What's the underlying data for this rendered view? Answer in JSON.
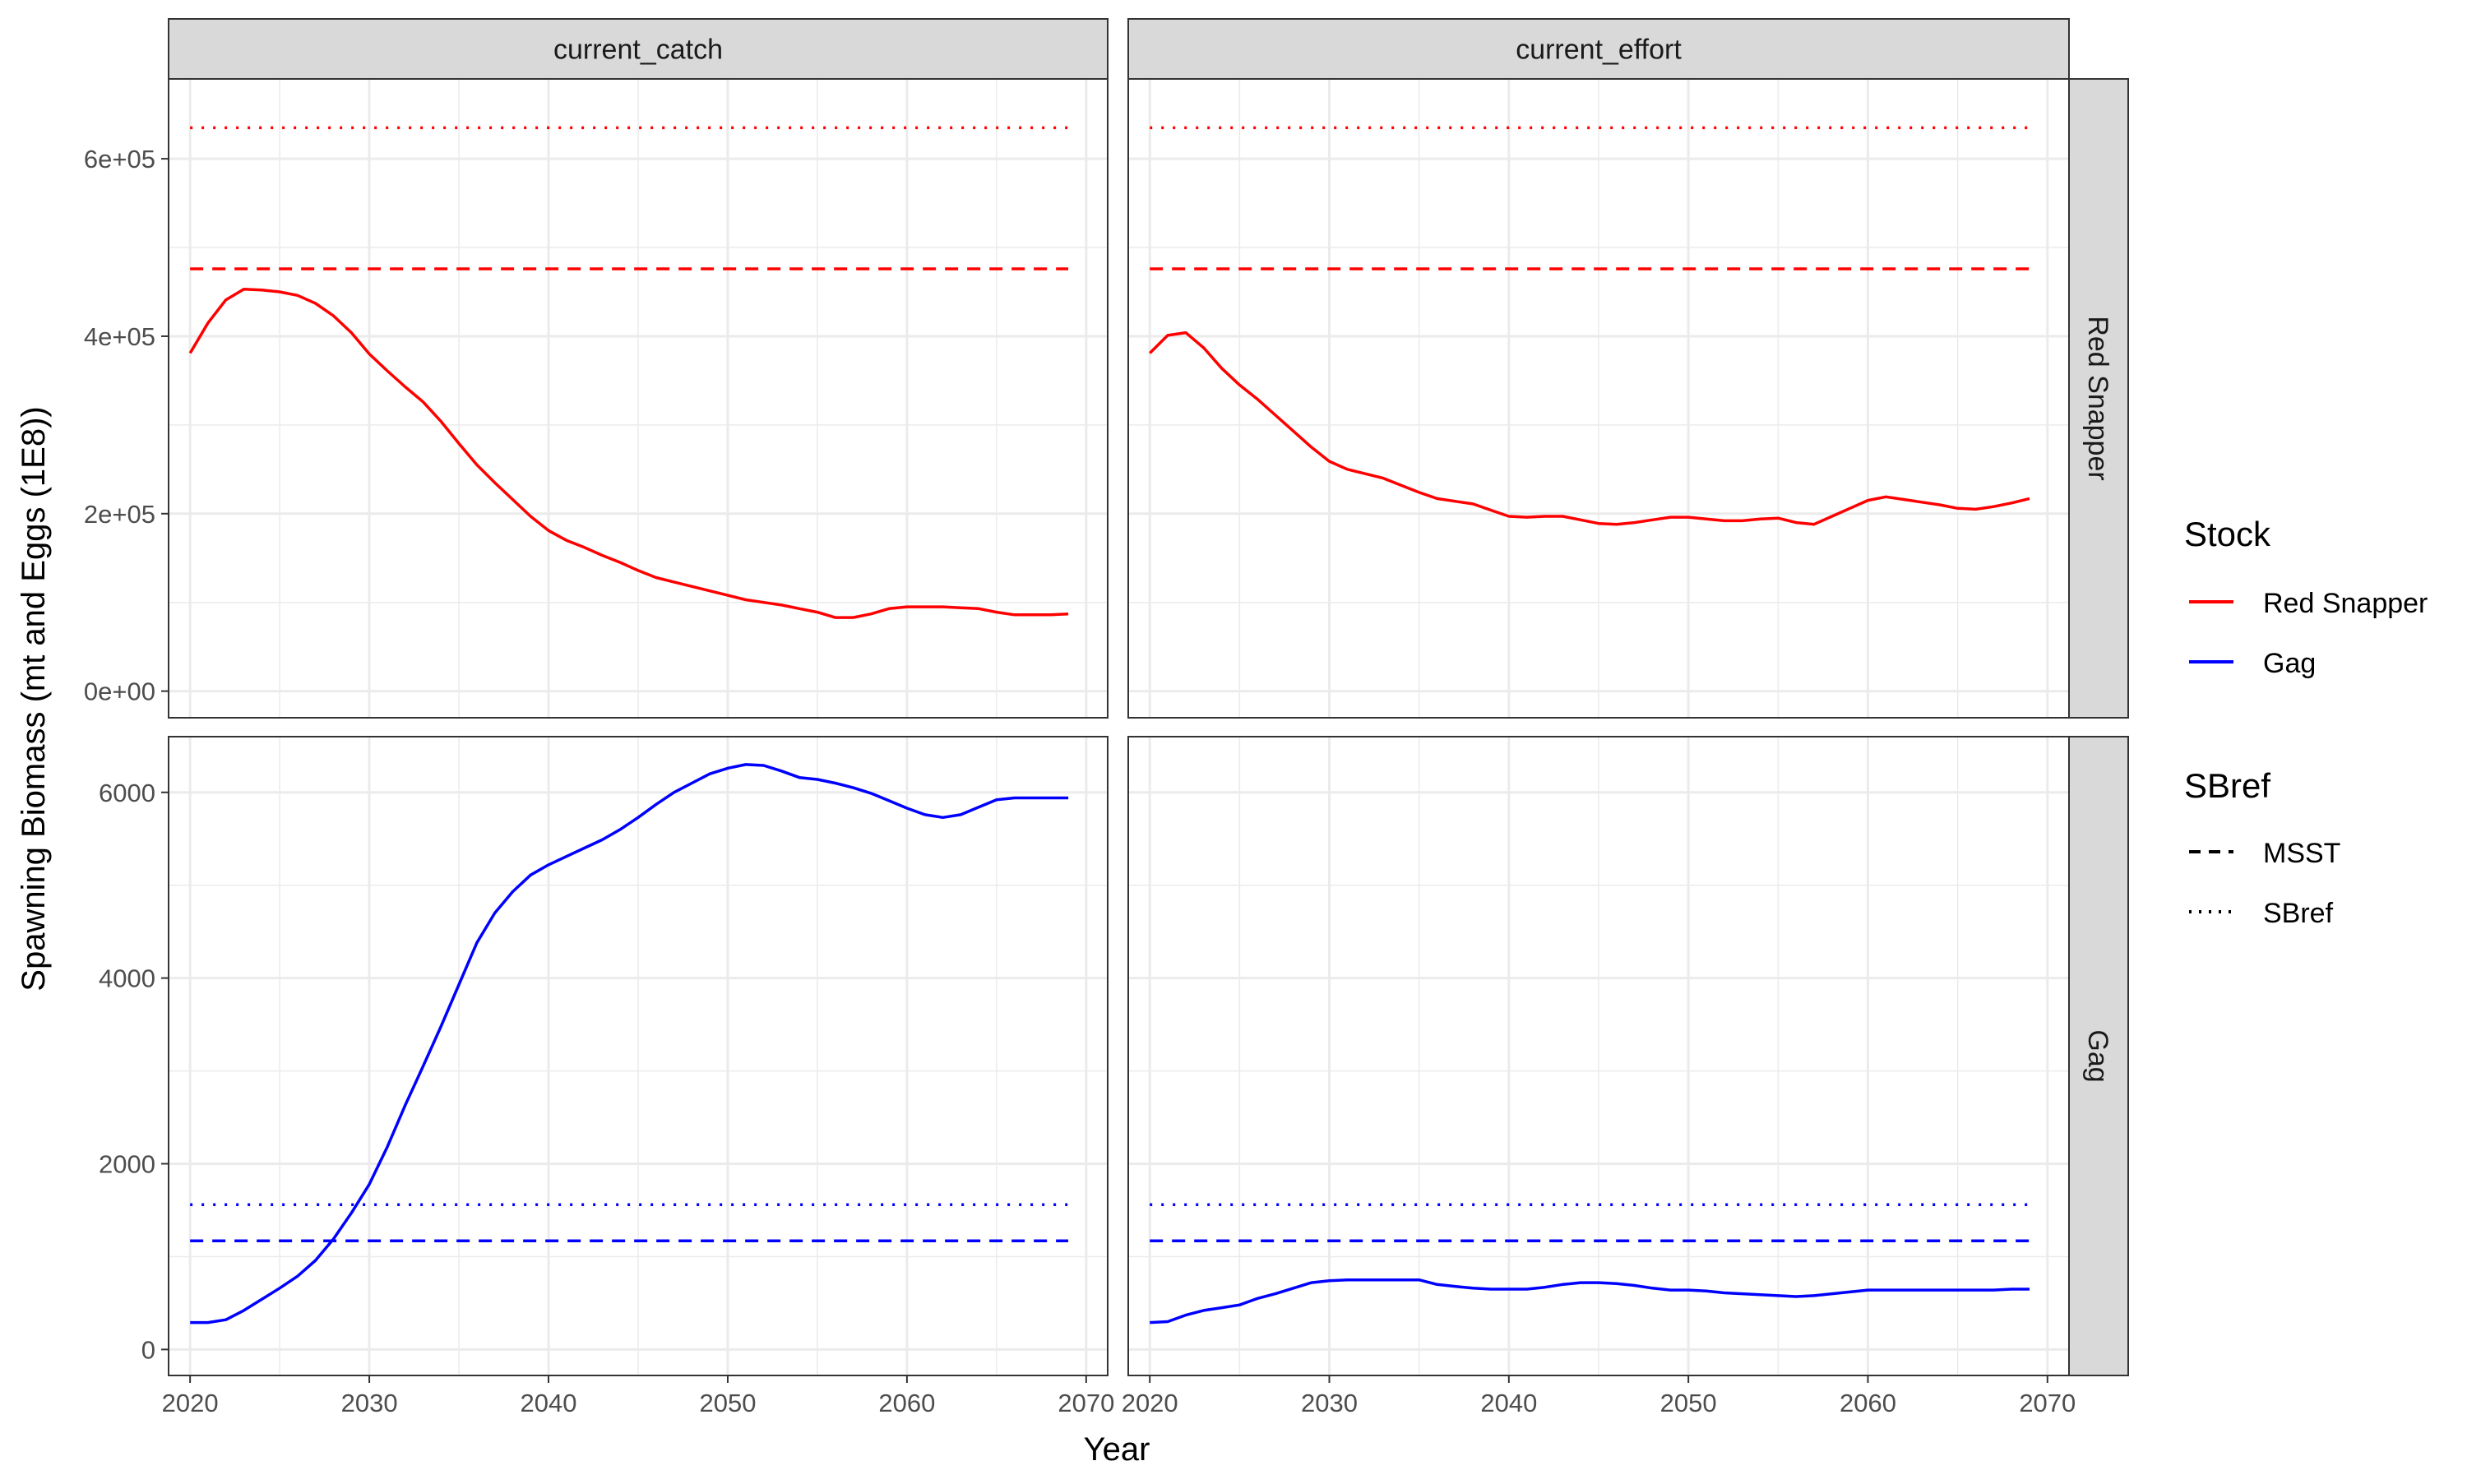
{
  "chart_data": {
    "type": "line",
    "layout": "facet_grid",
    "xlabel": "Year",
    "ylabel": "Spawning Biomass (mt and Eggs (1E8))",
    "x_ticks": [
      "2020",
      "2030",
      "2040",
      "2050",
      "2060",
      "2070"
    ],
    "xlim": [
      2018.8,
      2071.2
    ],
    "grid": true,
    "legend_placement": "right",
    "scenarios": [
      "current_catch",
      "current_effort"
    ],
    "stocks": [
      "Red Snapper",
      "Gag"
    ],
    "panels": [
      {
        "scenario": "current_catch",
        "stock": "Red Snapper",
        "ylim": [
          -30000,
          690000
        ],
        "y_ticks": [
          {
            "value": 0,
            "label": "0e+00"
          },
          {
            "value": 200000,
            "label": "2e+05"
          },
          {
            "value": 400000,
            "label": "4e+05"
          },
          {
            "value": 600000,
            "label": "6e+05"
          }
        ],
        "reference_lines": [
          {
            "type": "MSST",
            "value": 476000
          },
          {
            "type": "SBref",
            "value": 635000
          }
        ],
        "series": {
          "name": "Red Snapper",
          "x": [
            2020,
            2021,
            2022,
            2023,
            2024,
            2025,
            2026,
            2027,
            2028,
            2029,
            2030,
            2031,
            2032,
            2033,
            2034,
            2035,
            2036,
            2037,
            2038,
            2039,
            2040,
            2041,
            2042,
            2043,
            2044,
            2045,
            2046,
            2047,
            2048,
            2049,
            2050,
            2051,
            2052,
            2053,
            2054,
            2055,
            2056,
            2057,
            2058,
            2059,
            2060,
            2061,
            2062,
            2063,
            2064,
            2065,
            2066,
            2067,
            2068,
            2069
          ],
          "values": [
            381000,
            415000,
            441000,
            453000,
            452000,
            450000,
            446000,
            437000,
            423000,
            404000,
            380000,
            361000,
            343000,
            326000,
            304000,
            279000,
            255000,
            235000,
            216000,
            197000,
            181000,
            170000,
            162000,
            153000,
            145000,
            136000,
            128000,
            123000,
            118000,
            113000,
            108000,
            103000,
            100000,
            97000,
            93000,
            89000,
            83000,
            83000,
            87000,
            93000,
            95000,
            95000,
            95000,
            94000,
            93000,
            89000,
            86000,
            86000,
            86000,
            87000
          ]
        }
      },
      {
        "scenario": "current_effort",
        "stock": "Red Snapper",
        "ylim": [
          -30000,
          690000
        ],
        "y_ticks": [
          {
            "value": 0,
            "label": "0e+00"
          },
          {
            "value": 200000,
            "label": "2e+05"
          },
          {
            "value": 400000,
            "label": "4e+05"
          },
          {
            "value": 600000,
            "label": "6e+05"
          }
        ],
        "reference_lines": [
          {
            "type": "MSST",
            "value": 476000
          },
          {
            "type": "SBref",
            "value": 635000
          }
        ],
        "series": {
          "name": "Red Snapper",
          "x": [
            2020,
            2021,
            2022,
            2023,
            2024,
            2025,
            2026,
            2027,
            2028,
            2029,
            2030,
            2031,
            2032,
            2033,
            2034,
            2035,
            2036,
            2037,
            2038,
            2039,
            2040,
            2041,
            2042,
            2043,
            2044,
            2045,
            2046,
            2047,
            2048,
            2049,
            2050,
            2051,
            2052,
            2053,
            2054,
            2055,
            2056,
            2057,
            2058,
            2059,
            2060,
            2061,
            2062,
            2063,
            2064,
            2065,
            2066,
            2067,
            2068,
            2069
          ],
          "values": [
            381000,
            401000,
            404000,
            387000,
            364000,
            345000,
            329000,
            311000,
            293000,
            275000,
            259000,
            250000,
            245000,
            240000,
            232000,
            224000,
            217000,
            214000,
            211000,
            204000,
            197000,
            196000,
            197000,
            197000,
            193000,
            189000,
            188000,
            190000,
            193000,
            196000,
            196000,
            194000,
            192000,
            192000,
            194000,
            195000,
            190000,
            188000,
            197000,
            206000,
            215000,
            219000,
            216000,
            213000,
            210000,
            206000,
            205000,
            208000,
            212000,
            217000
          ]
        }
      },
      {
        "scenario": "current_catch",
        "stock": "Gag",
        "ylim": [
          -280,
          6600
        ],
        "y_ticks": [
          {
            "value": 0,
            "label": "0"
          },
          {
            "value": 2000,
            "label": "2000"
          },
          {
            "value": 4000,
            "label": "4000"
          },
          {
            "value": 6000,
            "label": "6000"
          }
        ],
        "reference_lines": [
          {
            "type": "MSST",
            "value": 1170
          },
          {
            "type": "SBref",
            "value": 1560
          }
        ],
        "series": {
          "name": "Gag",
          "x": [
            2020,
            2021,
            2022,
            2023,
            2024,
            2025,
            2026,
            2027,
            2028,
            2029,
            2030,
            2031,
            2032,
            2033,
            2034,
            2035,
            2036,
            2037,
            2038,
            2039,
            2040,
            2041,
            2042,
            2043,
            2044,
            2045,
            2046,
            2047,
            2048,
            2049,
            2050,
            2051,
            2052,
            2053,
            2054,
            2055,
            2056,
            2057,
            2058,
            2059,
            2060,
            2061,
            2062,
            2063,
            2064,
            2065,
            2066,
            2067,
            2068,
            2069
          ],
          "values": [
            290,
            290,
            320,
            420,
            540,
            660,
            790,
            960,
            1190,
            1470,
            1780,
            2180,
            2630,
            3050,
            3480,
            3930,
            4380,
            4700,
            4930,
            5110,
            5220,
            5310,
            5400,
            5490,
            5600,
            5730,
            5870,
            6000,
            6100,
            6200,
            6260,
            6300,
            6290,
            6230,
            6160,
            6140,
            6100,
            6050,
            5990,
            5910,
            5830,
            5760,
            5730,
            5760,
            5840,
            5920,
            5940,
            5940,
            5940,
            5940
          ]
        }
      },
      {
        "scenario": "current_effort",
        "stock": "Gag",
        "ylim": [
          -280,
          6600
        ],
        "y_ticks": [
          {
            "value": 0,
            "label": "0"
          },
          {
            "value": 2000,
            "label": "2000"
          },
          {
            "value": 4000,
            "label": "4000"
          },
          {
            "value": 6000,
            "label": "6000"
          }
        ],
        "reference_lines": [
          {
            "type": "MSST",
            "value": 1170
          },
          {
            "type": "SBref",
            "value": 1560
          }
        ],
        "series": {
          "name": "Gag",
          "x": [
            2020,
            2021,
            2022,
            2023,
            2024,
            2025,
            2026,
            2027,
            2028,
            2029,
            2030,
            2031,
            2032,
            2033,
            2034,
            2035,
            2036,
            2037,
            2038,
            2039,
            2040,
            2041,
            2042,
            2043,
            2044,
            2045,
            2046,
            2047,
            2048,
            2049,
            2050,
            2051,
            2052,
            2053,
            2054,
            2055,
            2056,
            2057,
            2058,
            2059,
            2060,
            2061,
            2062,
            2063,
            2064,
            2065,
            2066,
            2067,
            2068,
            2069
          ],
          "values": [
            290,
            300,
            370,
            420,
            450,
            480,
            550,
            600,
            660,
            720,
            740,
            750,
            750,
            750,
            750,
            750,
            700,
            680,
            660,
            650,
            650,
            650,
            670,
            700,
            720,
            720,
            710,
            690,
            660,
            640,
            640,
            630,
            610,
            600,
            590,
            580,
            570,
            580,
            600,
            620,
            640,
            640,
            640,
            640,
            640,
            640,
            640,
            640,
            650,
            650
          ]
        }
      }
    ],
    "legend": {
      "stock_title": "Stock",
      "stock_items": [
        {
          "label": "Red Snapper",
          "color": "#FF0000"
        },
        {
          "label": "Gag",
          "color": "#0000FF"
        }
      ],
      "sbref_title": "SBref",
      "sbref_items": [
        {
          "label": "MSST",
          "dash": "dashed"
        },
        {
          "label": "SBref",
          "dash": "dotted"
        }
      ]
    }
  },
  "colors": {
    "red_snapper": "#FF0000",
    "gag": "#0000FF",
    "strip_fill": "#D9D9D9",
    "grid": "#EBEBEB",
    "panel_border": "#333333"
  }
}
